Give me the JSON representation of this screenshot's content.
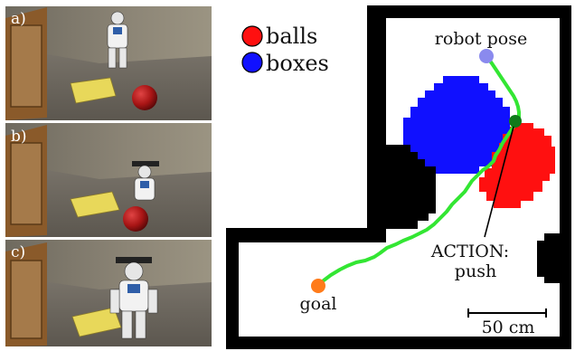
{
  "photos": {
    "labels": [
      "a)",
      "b)",
      "c)"
    ]
  },
  "map": {
    "legend": [
      {
        "label": "balls",
        "color": "#ff1010"
      },
      {
        "label": "boxes",
        "color": "#1010ff"
      }
    ],
    "robot_pose_label": "robot pose",
    "goal_label": "goal",
    "action_label": "ACTION:",
    "action_value": "push",
    "scale_label": "50 cm",
    "colors": {
      "wall": "#000000",
      "free": "#ffffff",
      "path": "#33e633",
      "robot": "#8a8aee",
      "goal": "#ff7b1a",
      "action_point": "#0f7a1a"
    }
  }
}
